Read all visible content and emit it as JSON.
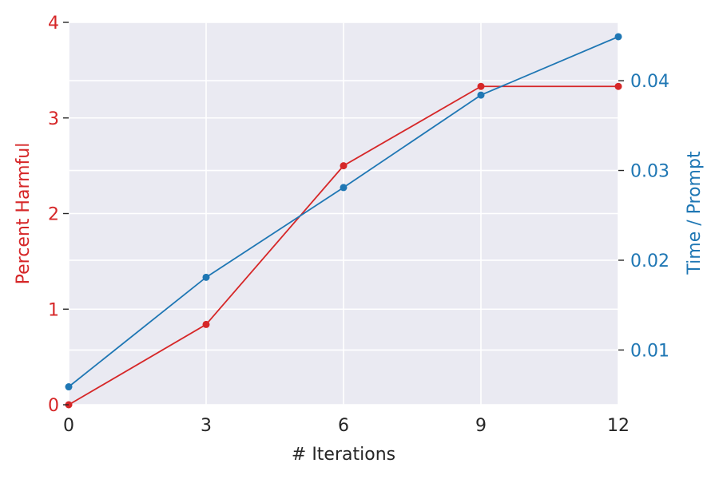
{
  "chart_data": {
    "type": "line",
    "xlabel": "# Iterations",
    "ylabel_left": "Percent Harmful",
    "ylabel_right": "Time / Prompt",
    "x_ticks": [
      0,
      3,
      6,
      9,
      12
    ],
    "x_tick_labels": [
      "0",
      "3",
      "6",
      "9",
      "12"
    ],
    "xlim": [
      0,
      12
    ],
    "ylim_left": [
      0,
      4
    ],
    "ylim_right": [
      0.0039,
      0.0465
    ],
    "y_left_ticks": [
      0,
      1,
      2,
      3,
      4
    ],
    "y_left_tick_labels": [
      "0",
      "1",
      "2",
      "3",
      "4"
    ],
    "y_right_ticks": [
      0.01,
      0.02,
      0.03,
      0.04
    ],
    "y_right_tick_labels": [
      "0.01",
      "0.02",
      "0.03",
      "0.04"
    ],
    "grid": true,
    "series": [
      {
        "axis": "left",
        "color": "#d62728",
        "x": [
          0,
          3,
          6,
          9,
          12
        ],
        "values": [
          0.0,
          0.84,
          2.5,
          3.33,
          3.33
        ]
      },
      {
        "axis": "right",
        "color": "#1f77b4",
        "x": [
          0,
          3,
          6,
          9,
          12
        ],
        "values": [
          0.0059,
          0.0181,
          0.0281,
          0.0384,
          0.0449
        ]
      }
    ]
  },
  "colors": {
    "plot_background": "#eaeaf2",
    "grid": "#ffffff",
    "text": "#262626",
    "left_axis": "#d62728",
    "right_axis": "#1f77b4"
  }
}
